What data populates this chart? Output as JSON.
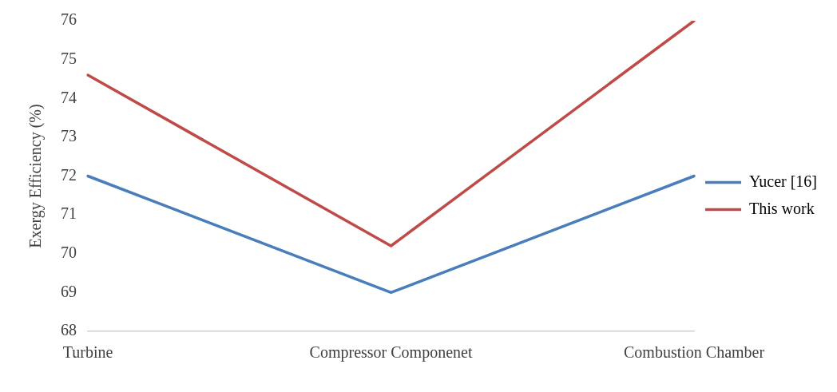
{
  "chart_data": {
    "type": "line",
    "ylabel": "Exergy Efficiency (%)",
    "categories": [
      "Turbine",
      "Compressor Componenet",
      "Combustion Chamber"
    ],
    "series": [
      {
        "name": "Yucer [16]",
        "color": "#4a7ebb",
        "values": [
          72,
          69,
          72
        ]
      },
      {
        "name": "This work",
        "color": "#be4b48",
        "values": [
          74.6,
          70.2,
          76
        ]
      }
    ],
    "ylim": [
      68,
      76
    ],
    "yticks": [
      68,
      69,
      70,
      71,
      72,
      73,
      74,
      75,
      76
    ],
    "grid": false,
    "legend": "right",
    "marker": "none"
  }
}
